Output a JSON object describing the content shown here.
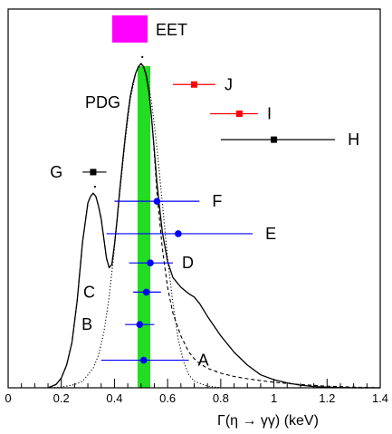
{
  "chart_data": {
    "type": "scatter",
    "title": "",
    "xlabel": "Γ(η → γγ)   (keV)",
    "ylabel": "",
    "xlim": [
      0,
      1.4
    ],
    "ylim": [
      0,
      1.0
    ],
    "x_ticks": [
      0,
      0.2,
      0.4,
      0.6,
      0.8,
      1.0,
      1.2,
      1.4
    ],
    "x_tick_labels": [
      "0",
      "0.2",
      "0.4",
      "0.6",
      "0.8",
      "1",
      "1.2",
      "1.4"
    ],
    "legend": {
      "label": "EET",
      "color": "#ff00ff"
    },
    "band": {
      "label": "PDG",
      "x_min": 0.487,
      "x_max": 0.535,
      "color": "#22dd22"
    },
    "measurements": [
      {
        "label": "J",
        "x": 0.7,
        "x_low": 0.62,
        "x_high": 0.78,
        "y": 0.935,
        "color": "#ff0000",
        "marker": "square"
      },
      {
        "label": "I",
        "x": 0.87,
        "x_low": 0.76,
        "x_high": 0.94,
        "y": 0.845,
        "color": "#ff0000",
        "marker": "square"
      },
      {
        "label": "H",
        "x": 1.0,
        "x_low": 0.8,
        "x_high": 1.23,
        "y": 0.765,
        "color": "#000000",
        "marker": "square"
      },
      {
        "label": "G",
        "x": 0.32,
        "x_low": 0.28,
        "x_high": 0.37,
        "y": 0.665,
        "color": "#000000",
        "marker": "square"
      },
      {
        "label": "F",
        "x": 0.56,
        "x_low": 0.4,
        "x_high": 0.72,
        "y": 0.575,
        "color": "#0000ff",
        "marker": "circle"
      },
      {
        "label": "E",
        "x": 0.64,
        "x_low": 0.37,
        "x_high": 0.92,
        "y": 0.475,
        "color": "#0000ff",
        "marker": "circle"
      },
      {
        "label": "D",
        "x": 0.535,
        "x_low": 0.455,
        "x_high": 0.62,
        "y": 0.385,
        "color": "#0000ff",
        "marker": "circle"
      },
      {
        "label": "C",
        "x": 0.52,
        "x_low": 0.47,
        "x_high": 0.575,
        "y": 0.295,
        "color": "#0000ff",
        "marker": "circle"
      },
      {
        "label": "B",
        "x": 0.495,
        "x_low": 0.44,
        "x_high": 0.55,
        "y": 0.195,
        "color": "#0000ff",
        "marker": "circle"
      },
      {
        "label": "A",
        "x": 0.51,
        "x_low": 0.35,
        "x_high": 0.68,
        "y": 0.085,
        "color": "#0000ff",
        "marker": "circle"
      }
    ],
    "curves": [
      {
        "style": "solid",
        "x": [
          0.15,
          0.18,
          0.2,
          0.22,
          0.24,
          0.26,
          0.28,
          0.3,
          0.31,
          0.32,
          0.33,
          0.34,
          0.35,
          0.36,
          0.37,
          0.38,
          0.39,
          0.4,
          0.41,
          0.42,
          0.43,
          0.44,
          0.45,
          0.46,
          0.47,
          0.48,
          0.49,
          0.5,
          0.51,
          0.52,
          0.53,
          0.54,
          0.55,
          0.56,
          0.58,
          0.6,
          0.62,
          0.65,
          0.68,
          0.7,
          0.72,
          0.75,
          0.8,
          0.85,
          0.9,
          0.95,
          1.0,
          1.05,
          1.1,
          1.15,
          1.2,
          1.25,
          1.3,
          1.35,
          1.4
        ],
        "y": [
          0.0,
          0.01,
          0.03,
          0.07,
          0.14,
          0.27,
          0.45,
          0.57,
          0.59,
          0.6,
          0.59,
          0.56,
          0.52,
          0.46,
          0.4,
          0.37,
          0.38,
          0.44,
          0.52,
          0.61,
          0.69,
          0.77,
          0.84,
          0.9,
          0.94,
          0.97,
          0.99,
          1.0,
          0.99,
          0.96,
          0.91,
          0.83,
          0.73,
          0.63,
          0.48,
          0.39,
          0.34,
          0.31,
          0.29,
          0.28,
          0.26,
          0.22,
          0.16,
          0.11,
          0.07,
          0.04,
          0.025,
          0.015,
          0.008,
          0.004,
          0.002,
          0.001,
          0.0,
          0.0,
          0.0
        ]
      },
      {
        "style": "dashed",
        "x": [
          0.15,
          0.18,
          0.2,
          0.22,
          0.24,
          0.26,
          0.28,
          0.3,
          0.31,
          0.32,
          0.33,
          0.34,
          0.35,
          0.36,
          0.37,
          0.38,
          0.39,
          0.4,
          0.41,
          0.42,
          0.43,
          0.44,
          0.45,
          0.46,
          0.47,
          0.48,
          0.49,
          0.5,
          0.51,
          0.52,
          0.53,
          0.54,
          0.55,
          0.56,
          0.58,
          0.6,
          0.62,
          0.65,
          0.68,
          0.7,
          0.72,
          0.75,
          0.8,
          0.85,
          0.9,
          0.95,
          1.0,
          1.1,
          1.2,
          1.3,
          1.4
        ],
        "y": [
          0.0,
          0.01,
          0.03,
          0.07,
          0.14,
          0.27,
          0.45,
          0.57,
          0.59,
          0.6,
          0.59,
          0.56,
          0.52,
          0.46,
          0.4,
          0.37,
          0.38,
          0.44,
          0.52,
          0.61,
          0.69,
          0.77,
          0.84,
          0.9,
          0.94,
          0.97,
          0.99,
          1.0,
          0.99,
          0.96,
          0.91,
          0.83,
          0.72,
          0.6,
          0.43,
          0.31,
          0.23,
          0.16,
          0.11,
          0.09,
          0.075,
          0.06,
          0.045,
          0.035,
          0.028,
          0.022,
          0.017,
          0.01,
          0.005,
          0.002,
          0.0
        ]
      },
      {
        "style": "dotted",
        "x": [
          0.15,
          0.2,
          0.25,
          0.28,
          0.3,
          0.32,
          0.34,
          0.36,
          0.38,
          0.4,
          0.42,
          0.44,
          0.46,
          0.48,
          0.5,
          0.52,
          0.54,
          0.56,
          0.58,
          0.6,
          0.62,
          0.64,
          0.66,
          0.68,
          0.7,
          0.75,
          0.8
        ],
        "y": [
          0.0,
          0.002,
          0.01,
          0.02,
          0.04,
          0.06,
          0.1,
          0.17,
          0.28,
          0.43,
          0.6,
          0.76,
          0.89,
          0.97,
          1.0,
          0.97,
          0.88,
          0.74,
          0.57,
          0.4,
          0.26,
          0.15,
          0.08,
          0.04,
          0.02,
          0.005,
          0.0
        ]
      }
    ],
    "peak_markers": [
      {
        "x": 0.327,
        "y": 0.62
      },
      {
        "x": 0.505,
        "y": 1.02
      }
    ]
  }
}
